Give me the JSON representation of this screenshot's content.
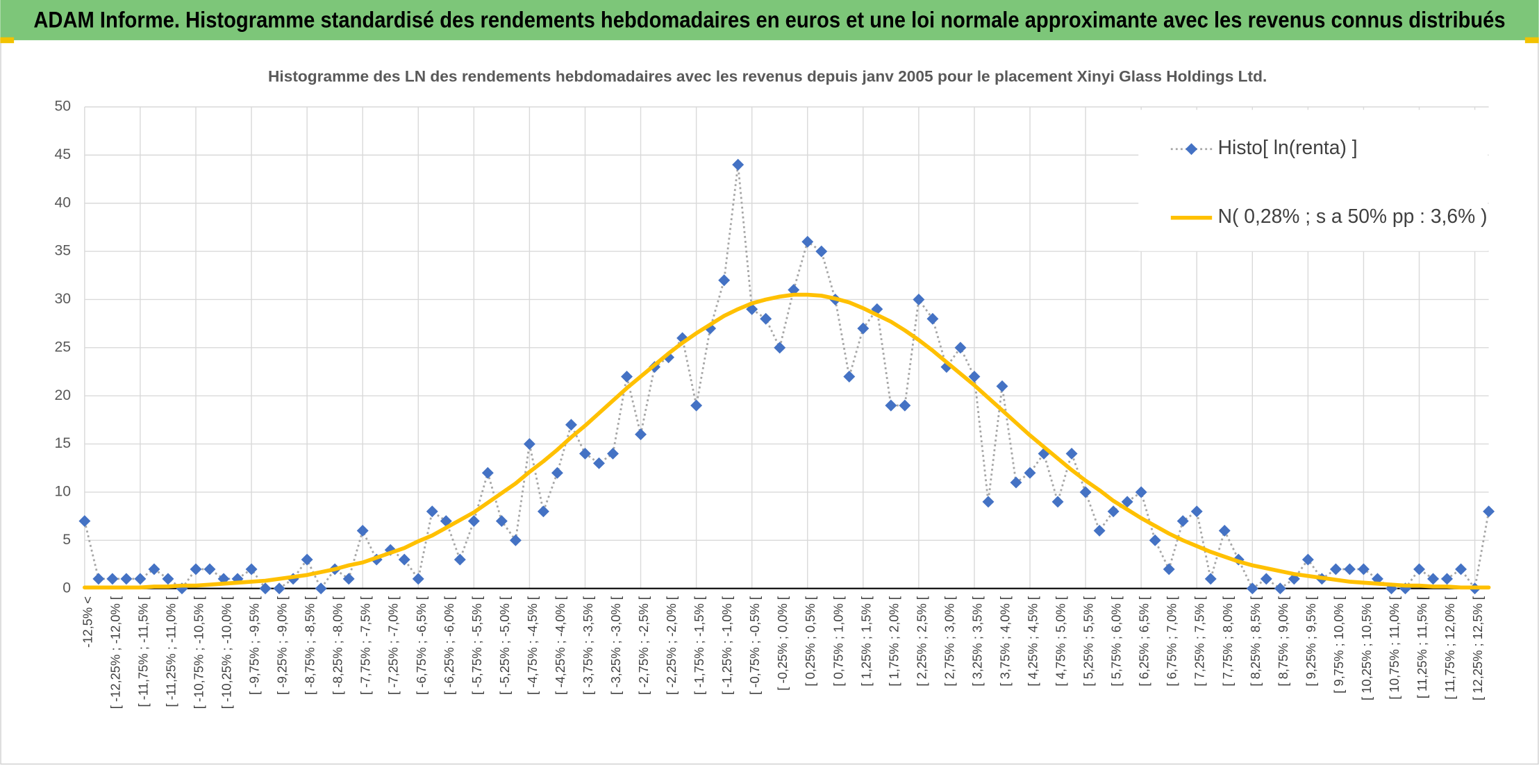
{
  "header": {
    "title": "ADAM Informe. Histogramme standardisé des rendements hebdomadaires en euros et une loi normale approximante avec les revenus connus distribués"
  },
  "chart_data": {
    "type": "line",
    "title": "Histogramme des LN des rendements hebdomadaires avec les revenus depuis janv 2005 pour le placement Xinyi Glass Holdings Ltd.",
    "categories": [
      "-12,5% <",
      null,
      "[ -12,25% ; -12,0% [",
      null,
      "[ -11,75% ; -11,5% [",
      null,
      "[ -11,25% ; -11,0% [",
      null,
      "[ -10,75% ; -10,5% [",
      null,
      "[ -10,25% ; -10,0% [",
      null,
      "[ -9,75% ; -9,5% [",
      null,
      "[ -9,25% ; -9,0% [",
      null,
      "[ -8,75% ; -8,5% [",
      null,
      "[ -8,25% ; -8,0% [",
      null,
      "[ -7,75% ; -7,5% [",
      null,
      "[ -7,25% ; -7,0% [",
      null,
      "[ -6,75% ; -6,5% [",
      null,
      "[ -6,25% ; -6,0% [",
      null,
      "[ -5,75% ; -5,5% [",
      null,
      "[ -5,25% ; -5,0% [",
      null,
      "[ -4,75% ; -4,5% [",
      null,
      "[ -4,25% ; -4,0% [",
      null,
      "[ -3,75% ; -3,5% [",
      null,
      "[ -3,25% ; -3,0% [",
      null,
      "[ -2,75% ; -2,5% [",
      null,
      "[ -2,25% ; -2,0% [",
      null,
      "[ -1,75% ; -1,5% [",
      null,
      "[ -1,25% ; -1,0% [",
      null,
      "[ -0,75% ; -0,5% [",
      null,
      "[ -0,25% ; 0,0% [",
      null,
      "[ 0,25% ; 0,5% [",
      null,
      "[ 0,75% ; 1,0% [",
      null,
      "[ 1,25% ; 1,5% [",
      null,
      "[ 1,75% ; 2,0% [",
      null,
      "[ 2,25% ; 2,5% [",
      null,
      "[ 2,75% ; 3,0% [",
      null,
      "[ 3,25% ; 3,5% [",
      null,
      "[ 3,75% ; 4,0% [",
      null,
      "[ 4,25% ; 4,5% [",
      null,
      "[ 4,75% ; 5,0% [",
      null,
      "[ 5,25% ; 5,5% [",
      null,
      "[ 5,75% ; 6,0% [",
      null,
      "[ 6,25% ; 6,5% [",
      null,
      "[ 6,75% ; 7,0% [",
      null,
      "[ 7,25% ; 7,5% [",
      null,
      "[ 7,75% ; 8,0% [",
      null,
      "[ 8,25% ; 8,5% [",
      null,
      "[ 8,75% ; 9,0% [",
      null,
      "[ 9,25% ; 9,5% [",
      null,
      "[ 9,75% ; 10,0% [",
      null,
      "[ 10,25% ; 10,5% [",
      null,
      "[ 10,75% ; 11,0% [",
      null,
      "[ 11,25% ; 11,5% [",
      null,
      "[ 11,75% ; 12,0% [",
      null,
      "[ 12,25% ; 12,5% [",
      null
    ],
    "series": [
      {
        "name": "Histo[ ln(renta) ]",
        "color": "#4472c4",
        "line_color": "#a6a6a6",
        "values": [
          7,
          1,
          1,
          1,
          1,
          2,
          1,
          0,
          2,
          2,
          1,
          1,
          2,
          0,
          0,
          1,
          3,
          0,
          2,
          1,
          6,
          3,
          4,
          3,
          1,
          8,
          7,
          3,
          7,
          12,
          7,
          5,
          15,
          8,
          12,
          17,
          14,
          13,
          14,
          22,
          16,
          23,
          24,
          26,
          19,
          27,
          32,
          44,
          29,
          28,
          25,
          31,
          36,
          35,
          30,
          22,
          27,
          29,
          19,
          19,
          30,
          28,
          23,
          25,
          22,
          9,
          21,
          11,
          12,
          14,
          9,
          14,
          10,
          6,
          8,
          9,
          10,
          5,
          2,
          7,
          8,
          1,
          6,
          3,
          0,
          1,
          0,
          1,
          3,
          1,
          2,
          2,
          2,
          1,
          0,
          0,
          2,
          1,
          1,
          2,
          0,
          8
        ]
      },
      {
        "name": "N( 0,28% ; s a 50% pp : 3,6% )",
        "color": "#ffc000",
        "values": [
          0.1,
          0.1,
          0.1,
          0.1,
          0.1,
          0.2,
          0.2,
          0.3,
          0.3,
          0.4,
          0.5,
          0.6,
          0.7,
          0.8,
          1.0,
          1.2,
          1.4,
          1.7,
          2.0,
          2.4,
          2.7,
          3.2,
          3.7,
          4.2,
          4.9,
          5.5,
          6.3,
          7.1,
          7.9,
          8.9,
          9.9,
          10.9,
          12.1,
          13.2,
          14.4,
          15.7,
          16.9,
          18.2,
          19.5,
          20.8,
          22.0,
          23.2,
          24.4,
          25.5,
          26.5,
          27.4,
          28.3,
          29.0,
          29.6,
          30.0,
          30.3,
          30.5,
          30.5,
          30.4,
          30.1,
          29.7,
          29.1,
          28.4,
          27.7,
          26.8,
          25.8,
          24.7,
          23.5,
          22.3,
          21.1,
          19.8,
          18.5,
          17.2,
          15.9,
          14.7,
          13.5,
          12.3,
          11.2,
          10.2,
          9.1,
          8.2,
          7.3,
          6.5,
          5.7,
          5.0,
          4.4,
          3.8,
          3.3,
          2.8,
          2.4,
          2.1,
          1.8,
          1.5,
          1.3,
          1.1,
          0.9,
          0.7,
          0.6,
          0.5,
          0.4,
          0.3,
          0.3,
          0.2,
          0.2,
          0.1,
          0.1,
          0.1
        ]
      }
    ],
    "ylim": [
      0,
      50
    ],
    "yticks": [
      0,
      5,
      10,
      15,
      20,
      25,
      30,
      35,
      40,
      45,
      50
    ],
    "grid": true,
    "legend": "top-right"
  }
}
